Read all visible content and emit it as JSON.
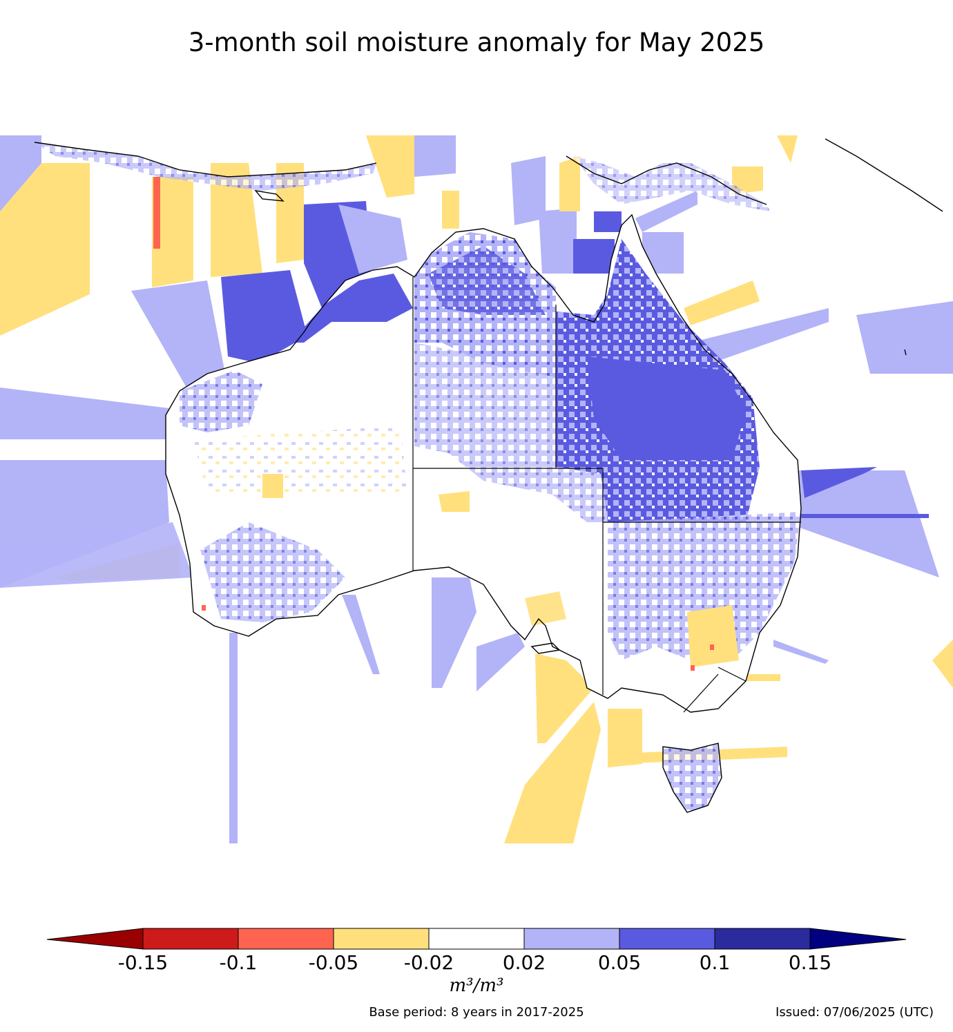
{
  "title": "3-month soil moisture anomaly for May 2025",
  "colorbar": {
    "ticks": [
      "-0.15",
      "-0.1",
      "-0.05",
      "-0.02",
      "0.02",
      "0.05",
      "0.1",
      "0.15"
    ],
    "classes": [
      {
        "range": "< -0.15",
        "color": "#990000"
      },
      {
        "range": "-0.15 to -0.1",
        "color": "#cd1a1a"
      },
      {
        "range": "-0.1 to -0.05",
        "color": "#ff6450"
      },
      {
        "range": "-0.05 to -0.02",
        "color": "#ffe07d"
      },
      {
        "range": "-0.02 to 0.02",
        "color": "#ffffff"
      },
      {
        "range": "0.02 to 0.05",
        "color": "#b3b3f8"
      },
      {
        "range": "0.05 to 0.1",
        "color": "#5a5ae0"
      },
      {
        "range": "0.1 to 0.15",
        "color": "#2b2b9e"
      },
      {
        "range": "> 0.15",
        "color": "#000080"
      }
    ],
    "unit": "m³/m³"
  },
  "footer": {
    "base_period": "Base period: 8 years in 2017-2025",
    "issued": "Issued: 07/06/2025 (UTC)"
  }
}
